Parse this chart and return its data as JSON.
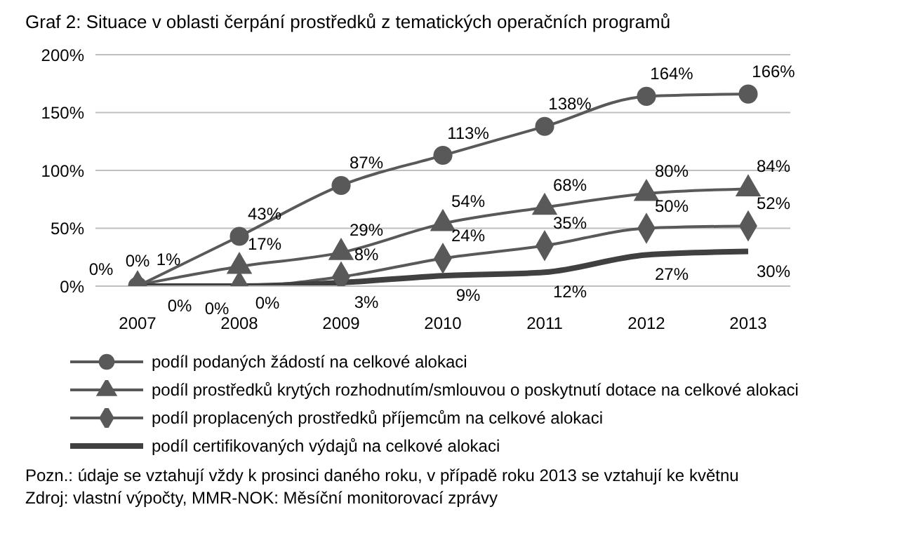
{
  "chart_data": {
    "type": "line",
    "title": "Graf 2: Situace v oblasti čerpání prostředků z tematických operačních programů",
    "categories": [
      "2007",
      "2008",
      "2009",
      "2010",
      "2011",
      "2012",
      "2013"
    ],
    "series": [
      {
        "name": "podíl podaných žádostí na celkové alokaci",
        "color": "#595959",
        "marker": "circle",
        "values": [
          0,
          43,
          87,
          113,
          138,
          164,
          166
        ],
        "value_labels": [
          "0%",
          "43%",
          "87%",
          "113%",
          "138%",
          "164%",
          "166%"
        ]
      },
      {
        "name": "podíl prostředků krytých rozhodnutím/smlouvou o poskytnutí dotace na celkové alokaci",
        "color": "#595959",
        "marker": "triangle",
        "values": [
          1,
          17,
          29,
          54,
          68,
          80,
          84
        ],
        "value_labels": [
          "1%",
          "17%",
          "29%",
          "54%",
          "68%",
          "80%",
          "84%"
        ]
      },
      {
        "name": "podíl proplacených prostředků příjemcům na celkové alokaci",
        "color": "#595959",
        "marker": "diamond",
        "values": [
          0,
          0,
          8,
          24,
          35,
          50,
          52
        ],
        "value_labels": [
          "0%",
          "0%",
          "8%",
          "24%",
          "35%",
          "50%",
          "52%"
        ]
      },
      {
        "name": "podíl certifikovaných výdajů na celkové alokaci",
        "color": "#404040",
        "marker": "none",
        "values": [
          0,
          0,
          3,
          9,
          12,
          27,
          30
        ],
        "value_labels": [
          "0%",
          "0%",
          "3%",
          "9%",
          "12%",
          "27%",
          "30%"
        ]
      }
    ],
    "ylim": [
      0,
      200
    ],
    "yticks": [
      {
        "value": 0,
        "label": "0%"
      },
      {
        "value": 50,
        "label": "50%"
      },
      {
        "value": 100,
        "label": "100%"
      },
      {
        "value": 150,
        "label": "150%"
      },
      {
        "value": 200,
        "label": "200%"
      }
    ],
    "grid": "y",
    "legend": "bottom",
    "annotations": [
      "Pozn.: údaje se vztahují vždy k prosinci daného roku, v případě roku 2013 se vztahují ke květnu",
      "Zdroj: vlastní výpočty, MMR-NOK: Měsíční monitorovací zprávy"
    ]
  }
}
